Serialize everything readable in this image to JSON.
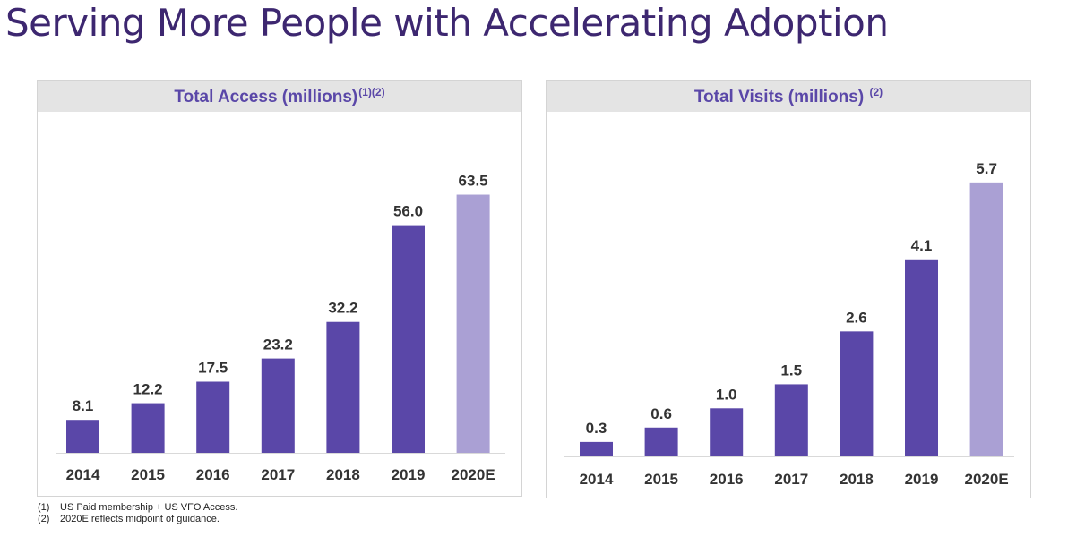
{
  "title": "Serving More People with Accelerating Adoption",
  "colors": {
    "actual": "#5a47a8",
    "estimate": "#aaa0d4",
    "header_bg": "#e4e4e4",
    "title": "#3d2770"
  },
  "chart_data": [
    {
      "type": "bar",
      "title": "Total Access (millions)",
      "title_superscript": "(1)(2)",
      "categories": [
        "2014",
        "2015",
        "2016",
        "2017",
        "2018",
        "2019",
        "2020E"
      ],
      "values": [
        8.1,
        12.2,
        17.5,
        23.2,
        32.2,
        56.0,
        63.5
      ],
      "labels": [
        "8.1",
        "12.2",
        "17.5",
        "23.2",
        "32.2",
        "56.0",
        "63.5"
      ],
      "estimate_categories": [
        "2020E"
      ],
      "ylim": [
        0,
        70
      ],
      "grid": false,
      "xlabel": "",
      "ylabel": ""
    },
    {
      "type": "bar",
      "title": "Total Visits (millions)",
      "title_superscript": "(2)",
      "categories": [
        "2014",
        "2015",
        "2016",
        "2017",
        "2018",
        "2019",
        "2020E"
      ],
      "values": [
        0.3,
        0.6,
        1.0,
        1.5,
        2.6,
        4.1,
        5.7
      ],
      "labels": [
        "0.3",
        "0.6",
        "1.0",
        "1.5",
        "2.6",
        "4.1",
        "5.7"
      ],
      "estimate_categories": [
        "2020E"
      ],
      "ylim": [
        0,
        6.2
      ],
      "grid": false,
      "xlabel": "",
      "ylabel": ""
    }
  ],
  "footnotes": [
    {
      "marker": "(1)",
      "text": "US Paid membership + US VFO Access."
    },
    {
      "marker": "(2)",
      "text": "2020E reflects midpoint of guidance."
    }
  ]
}
